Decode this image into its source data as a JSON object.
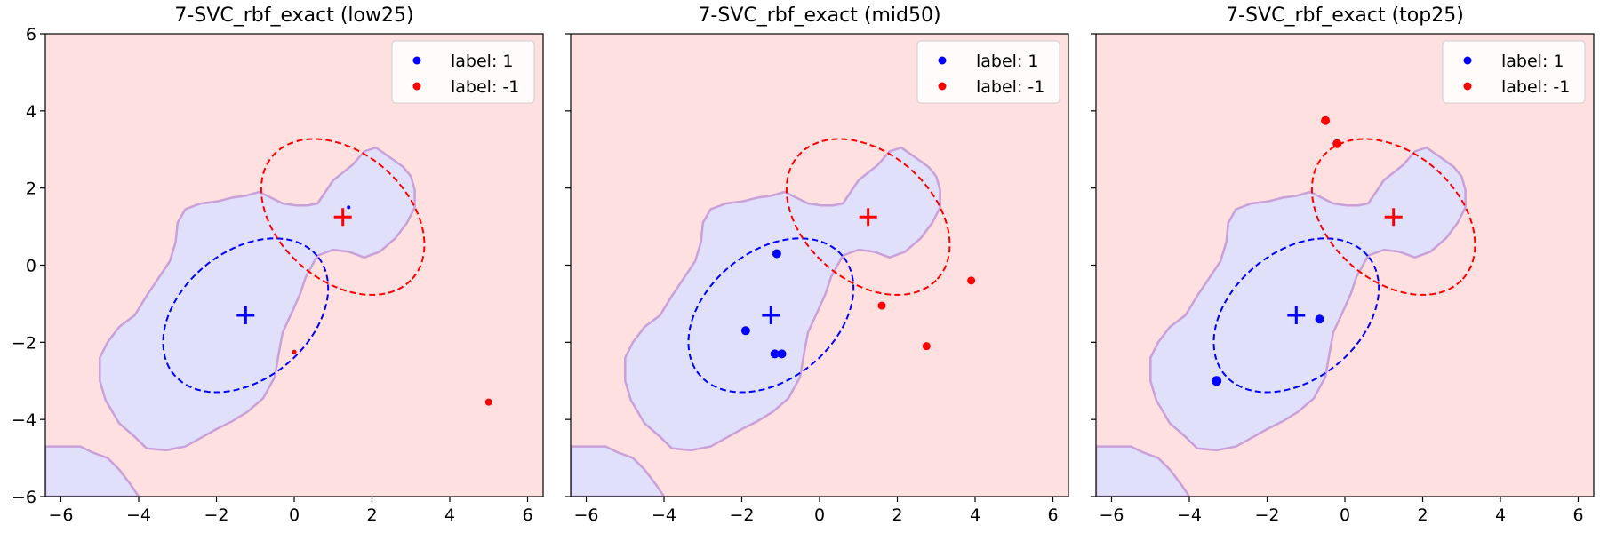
{
  "colors": {
    "positive": "#0000ff",
    "negative": "#ff0000",
    "region_positive": "#e0e0fb",
    "region_negative": "#ffe0e0",
    "boundary": "#c9a0d8"
  },
  "chart_data": [
    {
      "type": "scatter",
      "title": "7-SVC_rbf_exact (low25)",
      "xlim": [
        -6.4,
        6.4
      ],
      "ylim": [
        -6,
        6
      ],
      "xticks": [
        -6,
        -4,
        -2,
        0,
        2,
        4,
        6
      ],
      "yticks": [
        -6,
        -4,
        -2,
        0,
        2,
        4,
        6
      ],
      "legend_position": "top-right",
      "legend": [
        "label: 1",
        "label: -1"
      ],
      "series": [
        {
          "name": "label: 1",
          "color": "#0000ff",
          "points": [
            [
              1.4,
              1.5,
              2
            ]
          ]
        },
        {
          "name": "label: -1",
          "color": "#ff0000",
          "points": [
            [
              0.0,
              -2.25,
              2.5
            ],
            [
              5.0,
              -3.55,
              4
            ]
          ]
        }
      ],
      "centers": [
        {
          "x": -1.25,
          "y": -1.3,
          "color": "#0000ff"
        },
        {
          "x": 1.25,
          "y": 1.25,
          "color": "#ff0000"
        }
      ]
    },
    {
      "type": "scatter",
      "title": "7-SVC_rbf_exact (mid50)",
      "xlim": [
        -6.4,
        6.4
      ],
      "ylim": [
        -6,
        6
      ],
      "xticks": [
        -6,
        -4,
        -2,
        0,
        2,
        4,
        6
      ],
      "yticks": [
        -6,
        -4,
        -2,
        0,
        2,
        4,
        6
      ],
      "legend_position": "top-right",
      "legend": [
        "label: 1",
        "label: -1"
      ],
      "series": [
        {
          "name": "label: 1",
          "color": "#0000ff",
          "points": [
            [
              -1.1,
              0.3,
              5
            ],
            [
              -1.9,
              -1.7,
              5
            ],
            [
              -1.15,
              -2.3,
              5
            ],
            [
              -0.97,
              -2.3,
              5
            ]
          ]
        },
        {
          "name": "label: -1",
          "color": "#ff0000",
          "points": [
            [
              1.6,
              -1.05,
              4.5
            ],
            [
              3.9,
              -0.4,
              4.5
            ],
            [
              2.75,
              -2.1,
              4.5
            ]
          ]
        }
      ],
      "centers": [
        {
          "x": -1.25,
          "y": -1.3,
          "color": "#0000ff"
        },
        {
          "x": 1.25,
          "y": 1.25,
          "color": "#ff0000"
        }
      ]
    },
    {
      "type": "scatter",
      "title": "7-SVC_rbf_exact (top25)",
      "xlim": [
        -6.4,
        6.4
      ],
      "ylim": [
        -6,
        6
      ],
      "xticks": [
        -6,
        -4,
        -2,
        0,
        2,
        4,
        6
      ],
      "yticks": [
        -6,
        -4,
        -2,
        0,
        2,
        4,
        6
      ],
      "legend_position": "top-right",
      "legend": [
        "label: 1",
        "label: -1"
      ],
      "series": [
        {
          "name": "label: 1",
          "color": "#0000ff",
          "points": [
            [
              -0.65,
              -1.4,
              5
            ],
            [
              -3.3,
              -3.0,
              5.5
            ]
          ]
        },
        {
          "name": "label: -1",
          "color": "#ff0000",
          "points": [
            [
              -0.5,
              3.75,
              5
            ],
            [
              -0.2,
              3.15,
              5
            ]
          ]
        }
      ],
      "centers": [
        {
          "x": -1.25,
          "y": -1.3,
          "color": "#0000ff"
        },
        {
          "x": 1.25,
          "y": 1.25,
          "color": "#ff0000"
        }
      ]
    }
  ]
}
